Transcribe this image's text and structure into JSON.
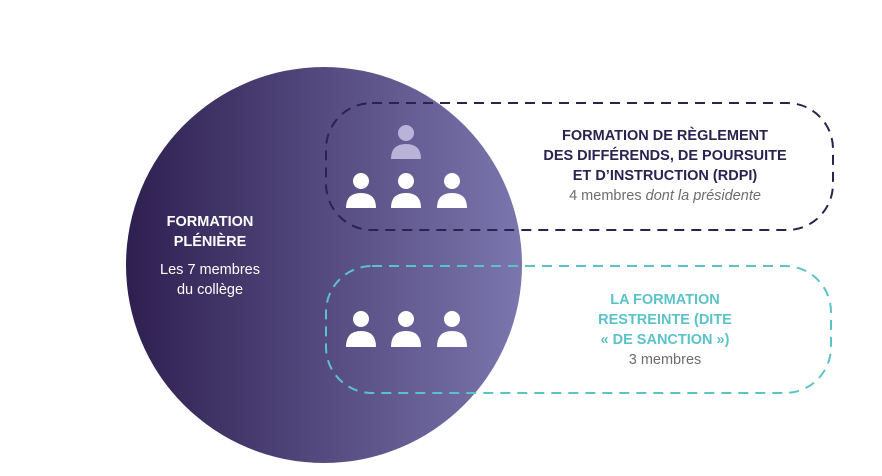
{
  "plenary": {
    "title_line1": "FORMATION",
    "title_line2": "PLÉNIÈRE",
    "desc_line1": "Les 7 membres",
    "desc_line2": "du collège"
  },
  "rdpi": {
    "title_line1": "FORMATION DE RÈGLEMENT",
    "title_line2": "DES DIFFÉRENDS, DE POURSUITE",
    "title_line3": "ET D’INSTRUCTION (RDPI)",
    "members": "4 membres ",
    "members_italic": "dont la présidente",
    "icon": "person-icon",
    "color": "#2b2250"
  },
  "sanction": {
    "title_line1": "LA FORMATION",
    "title_line2": "RESTREINTE (DITE",
    "title_line3": "« DE SANCTION »)",
    "members": "3 membres",
    "icon": "person-icon",
    "color": "#5bc3c8"
  },
  "colors": {
    "circle_dark": "#2e1f50",
    "circle_light": "#7b76ae",
    "president": "#b9b3d8",
    "members_text": "#6d6d6d"
  }
}
